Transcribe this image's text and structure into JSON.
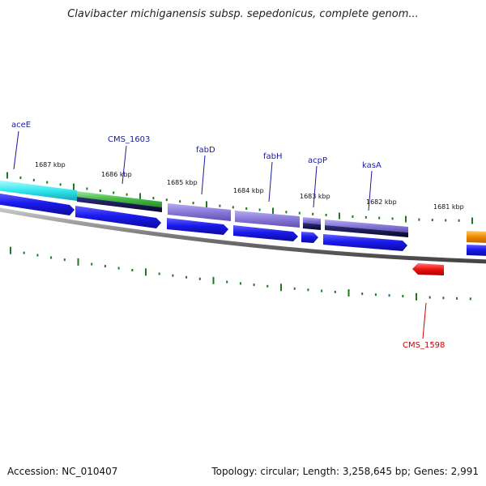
{
  "title": "Clavibacter michiganensis subsp. sepedonicus, complete genom...",
  "footer": {
    "accession": "Accession: NC_010407",
    "summary": "Topology: circular; Length: 3,258,645 bp; Genes: 2,991"
  },
  "colors": {
    "backbone": "#7a7a7a",
    "tick": "#1f7a1f",
    "forward_label": "#1a1aa0",
    "reverse_label": "#cc0000",
    "cds": "#1a1aee",
    "gene_cyan": "#33e8f0",
    "gene_green": "#44bb44",
    "gene_lavender": "#8878d8",
    "gene_red": "#ee1111",
    "gene_orange": "#ee8800",
    "dark_band": "#10104a"
  },
  "ruler": {
    "labels": [
      "1687 kbp",
      "1686 kbp",
      "1685 kbp",
      "1684 kbp",
      "1683 kbp",
      "1682 kbp",
      "1681 kbp"
    ]
  },
  "features": {
    "forward": [
      {
        "name": "aceE",
        "color": "cyan"
      },
      {
        "name": "CMS_1603",
        "color": "green"
      },
      {
        "name": "fabD",
        "color": "lavender"
      },
      {
        "name": "fabH",
        "color": "lavender"
      },
      {
        "name": "acpP",
        "color": "lavender"
      },
      {
        "name": "kasA",
        "color": "lavender"
      },
      {
        "name": "",
        "color": "orange"
      }
    ],
    "reverse": [
      {
        "name": "CMS_1598",
        "color": "red"
      }
    ]
  }
}
